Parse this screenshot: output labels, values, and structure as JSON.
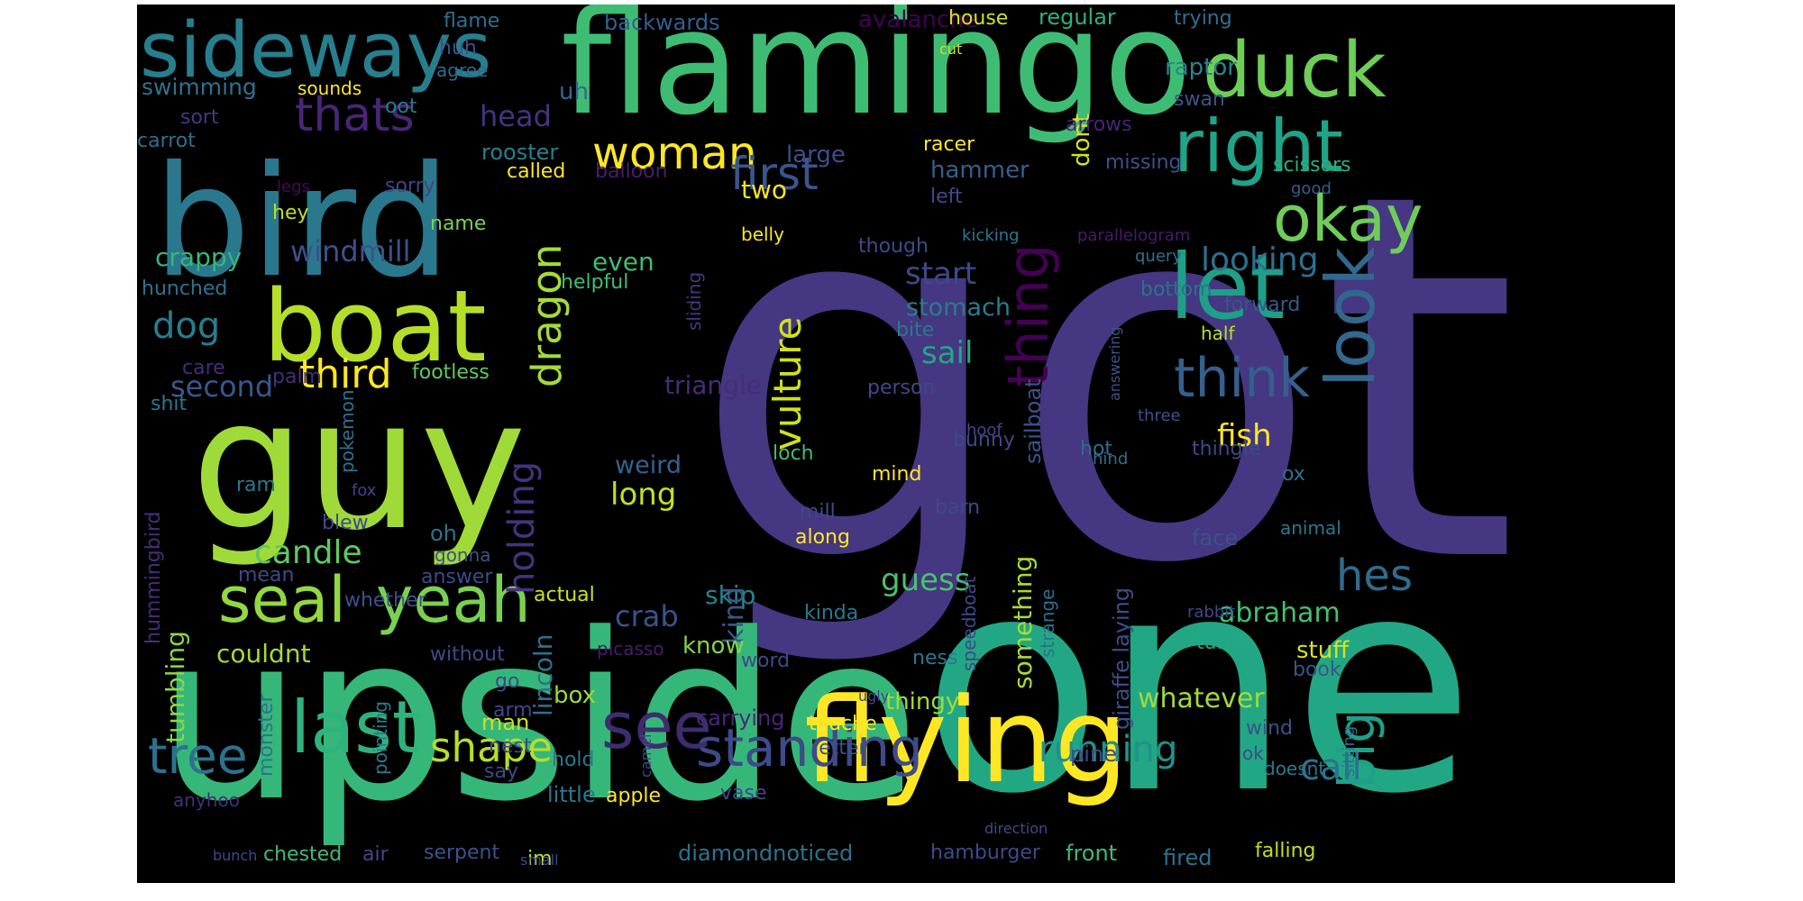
{
  "wordcloud": {
    "background": "#000000",
    "words": [
      {
        "text": "got",
        "color": "#453781"
      },
      {
        "text": "one",
        "color": "#22a784"
      },
      {
        "text": "upside",
        "color": "#35b779"
      },
      {
        "text": "flamingo",
        "color": "#3fbc73"
      },
      {
        "text": "guy",
        "color": "#a0da39"
      },
      {
        "text": "bird",
        "color": "#2a788e"
      },
      {
        "text": "boat",
        "color": "#b5de2b"
      },
      {
        "text": "flying",
        "color": "#fde725"
      },
      {
        "text": "sideways",
        "color": "#277f8e"
      },
      {
        "text": "duck",
        "color": "#6ece58"
      },
      {
        "text": "right",
        "color": "#20a386"
      },
      {
        "text": "seal",
        "color": "#93d741"
      },
      {
        "text": "yeah",
        "color": "#7ad151"
      },
      {
        "text": "last",
        "color": "#2eb37c"
      },
      {
        "text": "look",
        "color": "#31688e"
      },
      {
        "text": "let",
        "color": "#1f9f88"
      },
      {
        "text": "okay",
        "color": "#6ece58"
      },
      {
        "text": "standing",
        "color": "#3e4a89"
      },
      {
        "text": "thing",
        "color": "#440154"
      },
      {
        "text": "think",
        "color": "#355f8d"
      },
      {
        "text": "woman",
        "color": "#fde725"
      },
      {
        "text": "tree",
        "color": "#2c728e"
      },
      {
        "text": "see",
        "color": "#3f2c70"
      },
      {
        "text": "shape",
        "color": "#b5de2b"
      },
      {
        "text": "first",
        "color": "#39568c"
      },
      {
        "text": "vulture",
        "color": "#d0e11c"
      },
      {
        "text": "dragon",
        "color": "#a5db36"
      },
      {
        "text": "thats",
        "color": "#482677"
      },
      {
        "text": "third",
        "color": "#fde725"
      },
      {
        "text": "running",
        "color": "#21918c"
      },
      {
        "text": "big",
        "color": "#1fa088"
      },
      {
        "text": "hes",
        "color": "#2f6c8e"
      },
      {
        "text": "holding",
        "color": "#46327e"
      },
      {
        "text": "candle",
        "color": "#5ec962"
      },
      {
        "text": "abraham",
        "color": "#44bf70"
      },
      {
        "text": "call",
        "color": "#2c728e"
      },
      {
        "text": "windmill",
        "color": "#3b528b"
      },
      {
        "text": "dog",
        "color": "#287d8e"
      },
      {
        "text": "second",
        "color": "#38588c"
      },
      {
        "text": "looking",
        "color": "#2d708e"
      },
      {
        "text": "head",
        "color": "#46337f"
      },
      {
        "text": "fish",
        "color": "#fde725"
      },
      {
        "text": "start",
        "color": "#3e4989"
      },
      {
        "text": "sail",
        "color": "#22a884"
      },
      {
        "text": "stomach",
        "color": "#2a7b8e"
      },
      {
        "text": "long",
        "color": "#c2df23"
      },
      {
        "text": "weird",
        "color": "#32648e"
      },
      {
        "text": "guess",
        "color": "#4ac16d"
      },
      {
        "text": "crab",
        "color": "#3b528b"
      },
      {
        "text": "skip",
        "color": "#25848e"
      },
      {
        "text": "whatever",
        "color": "#9fda3a"
      },
      {
        "text": "something",
        "color": "#a8db34"
      },
      {
        "text": "lincoln",
        "color": "#2c718e"
      },
      {
        "text": "couldnt",
        "color": "#a2da37"
      },
      {
        "text": "tumbling",
        "color": "#8bd646"
      },
      {
        "text": "hummingbird",
        "color": "#472d7b"
      },
      {
        "text": "triangle",
        "color": "#472c7a"
      },
      {
        "text": "kind",
        "color": "#375a8c"
      },
      {
        "text": "know",
        "color": "#83d34b"
      },
      {
        "text": "box",
        "color": "#9bd93c"
      },
      {
        "text": "man",
        "color": "#cae11f"
      },
      {
        "text": "stuff",
        "color": "#d8e219"
      },
      {
        "text": "apple",
        "color": "#fde725"
      },
      {
        "text": "giraffe laying",
        "color": "#3d4e8a"
      },
      {
        "text": "sailboat",
        "color": "#3b528b"
      },
      {
        "text": "thingy",
        "color": "#a2da37"
      },
      {
        "text": "crappy",
        "color": "#35b779"
      },
      {
        "text": "rooster",
        "color": "#277f8e"
      },
      {
        "text": "swimming",
        "color": "#2c728e"
      },
      {
        "text": "regular",
        "color": "#2db27d"
      },
      {
        "text": "raptor",
        "color": "#24878e"
      },
      {
        "text": "dont",
        "color": "#d8e219"
      },
      {
        "text": "large",
        "color": "#3c4f8a"
      },
      {
        "text": "hammer",
        "color": "#355f8d"
      },
      {
        "text": "two",
        "color": "#f4e61e"
      },
      {
        "text": "even",
        "color": "#3fbc73"
      },
      {
        "text": "uh",
        "color": "#31688e"
      },
      {
        "text": "backwards",
        "color": "#355e8d"
      },
      {
        "text": "avalanche",
        "color": "#440154"
      },
      {
        "text": "flame",
        "color": "#2d708e"
      },
      {
        "text": "house",
        "color": "#d2e21b"
      },
      {
        "text": "trying",
        "color": "#2e6e8e"
      },
      {
        "text": "swan",
        "color": "#39568c"
      },
      {
        "text": "missing",
        "color": "#3b528b"
      },
      {
        "text": "scissors",
        "color": "#29af7f"
      },
      {
        "text": "good",
        "color": "#355e8d"
      },
      {
        "text": "arrows",
        "color": "#482475"
      },
      {
        "text": "racer",
        "color": "#fde725"
      },
      {
        "text": "balloon",
        "color": "#481d6f"
      },
      {
        "text": "called",
        "color": "#fde725"
      },
      {
        "text": "left",
        "color": "#3e4989"
      },
      {
        "text": "sort",
        "color": "#453781"
      },
      {
        "text": "carrot",
        "color": "#2d708e"
      },
      {
        "text": "hey",
        "color": "#bddf26"
      },
      {
        "text": "sorry",
        "color": "#414487"
      },
      {
        "text": "name",
        "color": "#7ad151"
      },
      {
        "text": "legs",
        "color": "#46085c"
      },
      {
        "text": "huh",
        "color": "#3b528b"
      },
      {
        "text": "agree",
        "color": "#31688e"
      },
      {
        "text": "sounds",
        "color": "#fde725"
      },
      {
        "text": "oot",
        "color": "#2a788e"
      },
      {
        "text": "cut",
        "color": "#c8e020"
      },
      {
        "text": "hunched",
        "color": "#2c728e"
      },
      {
        "text": "helpful",
        "color": "#3fbc73"
      },
      {
        "text": "bite",
        "color": "#2a788e"
      },
      {
        "text": "though",
        "color": "#3e4989"
      },
      {
        "text": "sliding",
        "color": "#453882"
      },
      {
        "text": "kicking",
        "color": "#2a788e"
      },
      {
        "text": "parallelogram",
        "color": "#481b6d"
      },
      {
        "text": "query",
        "color": "#2d708e"
      },
      {
        "text": "bottom",
        "color": "#2c728e"
      },
      {
        "text": "forward",
        "color": "#39568c"
      },
      {
        "text": "half",
        "color": "#bddf26"
      },
      {
        "text": "belly",
        "color": "#fde725"
      },
      {
        "text": "care",
        "color": "#472d7b"
      },
      {
        "text": "palm",
        "color": "#472d7b"
      },
      {
        "text": "footless",
        "color": "#5ec962"
      },
      {
        "text": "shit",
        "color": "#2a788e"
      },
      {
        "text": "person",
        "color": "#3e4989"
      },
      {
        "text": "three",
        "color": "#3b528b"
      },
      {
        "text": "answering",
        "color": "#3b528b"
      },
      {
        "text": "pokemon",
        "color": "#2c728e"
      },
      {
        "text": "ram",
        "color": "#2a788e"
      },
      {
        "text": "fox",
        "color": "#414487"
      },
      {
        "text": "blew",
        "color": "#3e4989"
      },
      {
        "text": "mind",
        "color": "#fde725"
      },
      {
        "text": "barn",
        "color": "#3e4989"
      },
      {
        "text": "loch",
        "color": "#3fbc73"
      },
      {
        "text": "hoof",
        "color": "#3e4989"
      },
      {
        "text": "hind",
        "color": "#2d708e"
      },
      {
        "text": "bunny",
        "color": "#3e4989"
      },
      {
        "text": "hot",
        "color": "#2e6e8e"
      },
      {
        "text": "thingle",
        "color": "#3e4989"
      },
      {
        "text": "ox",
        "color": "#2d708e"
      },
      {
        "text": "oh",
        "color": "#2c728e"
      },
      {
        "text": "gonna",
        "color": "#3b528b"
      },
      {
        "text": "mill",
        "color": "#3e4989"
      },
      {
        "text": "along",
        "color": "#fde725"
      },
      {
        "text": "face",
        "color": "#3b528b"
      },
      {
        "text": "animal",
        "color": "#2a788e"
      },
      {
        "text": "mean",
        "color": "#3e4989"
      },
      {
        "text": "answer",
        "color": "#3e4989"
      },
      {
        "text": "whether",
        "color": "#3b528b"
      },
      {
        "text": "actual",
        "color": "#cae11f"
      },
      {
        "text": "kinda",
        "color": "#2a788e"
      },
      {
        "text": "speedboat",
        "color": "#3e4989"
      },
      {
        "text": "strange",
        "color": "#2d708e"
      },
      {
        "text": "rabbit",
        "color": "#3e4989"
      },
      {
        "text": "turtle",
        "color": "#22a884"
      },
      {
        "text": "picasso",
        "color": "#481b6d"
      },
      {
        "text": "without",
        "color": "#3e4989"
      },
      {
        "text": "word",
        "color": "#3e4989"
      },
      {
        "text": "ness",
        "color": "#2a788e"
      },
      {
        "text": "book",
        "color": "#3b528b"
      },
      {
        "text": "go",
        "color": "#3e4989"
      },
      {
        "text": "arm",
        "color": "#3e4989"
      },
      {
        "text": "monster",
        "color": "#2c728e"
      },
      {
        "text": "pointing",
        "color": "#2a788e"
      },
      {
        "text": "nest",
        "color": "#3e4989"
      },
      {
        "text": "hold",
        "color": "#2a788e"
      },
      {
        "text": "carrying",
        "color": "#482878"
      },
      {
        "text": "touche",
        "color": "#fde725"
      },
      {
        "text": "ugly",
        "color": "#3e4989"
      },
      {
        "text": "letter",
        "color": "#3b528b"
      },
      {
        "text": "camel",
        "color": "#3e4989"
      },
      {
        "text": "pine",
        "color": "#3e4989"
      },
      {
        "text": "wind",
        "color": "#3b528b"
      },
      {
        "text": "ok",
        "color": "#3e4989"
      },
      {
        "text": "sitting",
        "color": "#2d708e"
      },
      {
        "text": "doesnt",
        "color": "#2a788e"
      },
      {
        "text": "direction",
        "color": "#3e4989"
      },
      {
        "text": "say",
        "color": "#3e4989"
      },
      {
        "text": "little",
        "color": "#2a788e"
      },
      {
        "text": "vase",
        "color": "#3e4989"
      },
      {
        "text": "anyhoo",
        "color": "#472d7b"
      },
      {
        "text": "bunch",
        "color": "#3e4989"
      },
      {
        "text": "chested",
        "color": "#3fbc73"
      },
      {
        "text": "air",
        "color": "#3e4989"
      },
      {
        "text": "serpent",
        "color": "#3b528b"
      },
      {
        "text": "im",
        "color": "#bddf26"
      },
      {
        "text": "small",
        "color": "#3e4989"
      },
      {
        "text": "diamondnoticed",
        "color": "#2c728e"
      },
      {
        "text": "hamburger",
        "color": "#3e4989"
      },
      {
        "text": "front",
        "color": "#3fbc73"
      },
      {
        "text": "fired",
        "color": "#2c728e"
      },
      {
        "text": "falling",
        "color": "#bddf26"
      }
    ]
  }
}
